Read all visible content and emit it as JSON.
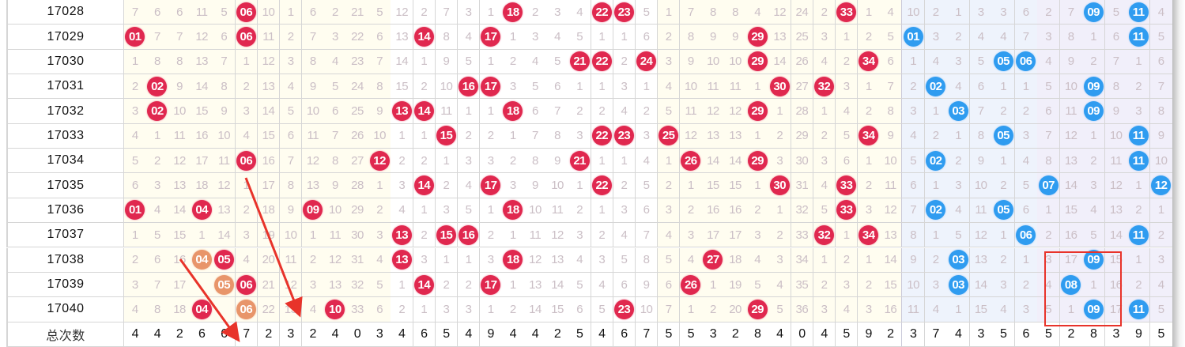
{
  "totals_label": "总次数",
  "colors": {
    "red_ball": "#e0284f",
    "blue_ball": "#2f9cf0",
    "orange_ball": "#e8956a",
    "annotation": "#e8332a"
  },
  "rows": [
    {
      "issue": "17028",
      "red": [
        "7",
        "6",
        "6",
        "11",
        "5",
        {
          "ball": "06",
          "color": "red"
        },
        "10",
        "1",
        "6",
        "2",
        "21",
        "5",
        "12",
        "2",
        "7",
        "3",
        "1",
        {
          "ball": "18",
          "color": "red"
        },
        "2",
        "3",
        "4",
        {
          "ball": "22",
          "color": "red"
        },
        {
          "ball": "23",
          "color": "red"
        },
        "5",
        "1",
        "7",
        "8",
        "8",
        "4",
        "12",
        "24",
        "2",
        {
          "ball": "33",
          "color": "red"
        },
        "1",
        "4"
      ],
      "blue": [
        "10",
        "2",
        "1",
        "3",
        "3",
        "6",
        "2",
        "7",
        {
          "ball": "09",
          "color": "blue"
        },
        "5",
        {
          "ball": "11",
          "color": "blue"
        },
        "4"
      ]
    },
    {
      "issue": "17029",
      "red": [
        {
          "ball": "01",
          "color": "red"
        },
        "7",
        "7",
        "12",
        "6",
        {
          "ball": "06",
          "color": "red"
        },
        "11",
        "2",
        "7",
        "3",
        "22",
        "6",
        "13",
        {
          "ball": "14",
          "color": "red"
        },
        "8",
        "4",
        {
          "ball": "17",
          "color": "red"
        },
        "1",
        "3",
        "4",
        "5",
        "1",
        "1",
        "6",
        "2",
        "8",
        "9",
        "9",
        {
          "ball": "29",
          "color": "red"
        },
        "13",
        "25",
        "3",
        "1",
        "2",
        "5"
      ],
      "blue": [
        {
          "ball": "01",
          "color": "blue"
        },
        "3",
        "2",
        "4",
        "4",
        "7",
        "3",
        "8",
        "1",
        "6",
        {
          "ball": "11",
          "color": "blue"
        },
        "5"
      ]
    },
    {
      "issue": "17030",
      "red": [
        "1",
        "8",
        "8",
        "13",
        "7",
        "1",
        "12",
        "3",
        "8",
        "4",
        "23",
        "7",
        "14",
        "1",
        "9",
        "5",
        "1",
        "2",
        "4",
        "5",
        {
          "ball": "21",
          "color": "red"
        },
        {
          "ball": "22",
          "color": "red"
        },
        "2",
        {
          "ball": "24",
          "color": "red"
        },
        "3",
        "9",
        "10",
        "10",
        {
          "ball": "29",
          "color": "red"
        },
        "14",
        "26",
        "4",
        "2",
        {
          "ball": "34",
          "color": "red"
        },
        "6"
      ],
      "blue": [
        "1",
        "4",
        "3",
        "5",
        {
          "ball": "05",
          "color": "blue"
        },
        {
          "ball": "06",
          "color": "blue"
        },
        "4",
        "9",
        "2",
        "7",
        "1",
        "6"
      ]
    },
    {
      "issue": "17031",
      "red": [
        "2",
        {
          "ball": "02",
          "color": "red"
        },
        "9",
        "14",
        "8",
        "2",
        "13",
        "4",
        "9",
        "5",
        "24",
        "8",
        "15",
        "2",
        "10",
        {
          "ball": "16",
          "color": "red"
        },
        {
          "ball": "17",
          "color": "red"
        },
        "3",
        "5",
        "6",
        "1",
        "1",
        "3",
        "1",
        "4",
        "10",
        "11",
        "11",
        "1",
        {
          "ball": "30",
          "color": "red"
        },
        "27",
        {
          "ball": "32",
          "color": "red"
        },
        "3",
        "1",
        "7"
      ],
      "blue": [
        "2",
        {
          "ball": "02",
          "color": "blue"
        },
        "4",
        "6",
        "1",
        "1",
        "5",
        "10",
        {
          "ball": "09",
          "color": "blue"
        },
        "8",
        "2",
        "7"
      ]
    },
    {
      "issue": "17032",
      "red": [
        "3",
        {
          "ball": "02",
          "color": "red"
        },
        "10",
        "15",
        "9",
        "3",
        "14",
        "5",
        "10",
        "6",
        "25",
        "9",
        {
          "ball": "13",
          "color": "red"
        },
        {
          "ball": "14",
          "color": "red"
        },
        "11",
        "1",
        "1",
        {
          "ball": "18",
          "color": "red"
        },
        "6",
        "7",
        "2",
        "2",
        "4",
        "2",
        "5",
        "11",
        "12",
        "12",
        {
          "ball": "29",
          "color": "red"
        },
        "1",
        "28",
        "1",
        "4",
        "2",
        "8"
      ],
      "blue": [
        "3",
        "1",
        {
          "ball": "03",
          "color": "blue"
        },
        "7",
        "2",
        "2",
        "6",
        "11",
        {
          "ball": "09",
          "color": "blue"
        },
        "9",
        "3",
        "8"
      ]
    },
    {
      "issue": "17033",
      "red": [
        "4",
        "1",
        "11",
        "16",
        "10",
        "4",
        "15",
        "6",
        "11",
        "7",
        "26",
        "10",
        "1",
        "1",
        {
          "ball": "15",
          "color": "red"
        },
        "2",
        "2",
        "1",
        "7",
        "8",
        "3",
        {
          "ball": "22",
          "color": "red"
        },
        {
          "ball": "23",
          "color": "red"
        },
        "3",
        {
          "ball": "25",
          "color": "red"
        },
        "12",
        "13",
        "13",
        "1",
        "2",
        "29",
        "2",
        "5",
        {
          "ball": "34",
          "color": "red"
        },
        "9"
      ],
      "blue": [
        "4",
        "2",
        "1",
        "8",
        {
          "ball": "05",
          "color": "blue"
        },
        "3",
        "7",
        "12",
        "1",
        "10",
        {
          "ball": "11",
          "color": "blue"
        },
        "9"
      ]
    },
    {
      "issue": "17034",
      "red": [
        "5",
        "2",
        "12",
        "17",
        "11",
        {
          "ball": "06",
          "color": "red"
        },
        "16",
        "7",
        "12",
        "8",
        "27",
        {
          "ball": "12",
          "color": "red"
        },
        "2",
        "2",
        "1",
        "3",
        "3",
        "2",
        "8",
        "9",
        {
          "ball": "21",
          "color": "red"
        },
        "1",
        "1",
        "4",
        "1",
        {
          "ball": "26",
          "color": "red"
        },
        "14",
        "14",
        {
          "ball": "29",
          "color": "red"
        },
        "3",
        "30",
        "3",
        "6",
        "1",
        "10"
      ],
      "blue": [
        "5",
        {
          "ball": "02",
          "color": "blue"
        },
        "2",
        "9",
        "1",
        "4",
        "8",
        "13",
        "2",
        "11",
        {
          "ball": "11",
          "color": "blue"
        },
        "10"
      ]
    },
    {
      "issue": "17035",
      "red": [
        "6",
        "3",
        "13",
        "18",
        "12",
        "1",
        "17",
        "8",
        "13",
        "9",
        "28",
        "1",
        "3",
        {
          "ball": "14",
          "color": "red"
        },
        "2",
        "4",
        {
          "ball": "17",
          "color": "red"
        },
        "3",
        "9",
        "10",
        "1",
        {
          "ball": "22",
          "color": "red"
        },
        "2",
        "5",
        "2",
        "1",
        "15",
        "15",
        "1",
        {
          "ball": "30",
          "color": "red"
        },
        "31",
        "4",
        {
          "ball": "33",
          "color": "red"
        },
        "2",
        "11"
      ],
      "blue": [
        "6",
        "1",
        "3",
        "10",
        "2",
        "5",
        {
          "ball": "07",
          "color": "blue"
        },
        "14",
        "3",
        "12",
        "1",
        {
          "ball": "12",
          "color": "blue"
        }
      ]
    },
    {
      "issue": "17036",
      "red": [
        {
          "ball": "01",
          "color": "red"
        },
        "4",
        "14",
        {
          "ball": "04",
          "color": "red"
        },
        "13",
        "2",
        "18",
        "9",
        {
          "ball": "09",
          "color": "red"
        },
        "10",
        "29",
        "2",
        "4",
        "1",
        "3",
        "5",
        "1",
        {
          "ball": "18",
          "color": "red"
        },
        "10",
        "11",
        "2",
        "1",
        "3",
        "6",
        "3",
        "2",
        "16",
        "16",
        "2",
        "1",
        "32",
        "5",
        {
          "ball": "33",
          "color": "red"
        },
        "3",
        "12"
      ],
      "blue": [
        "7",
        {
          "ball": "02",
          "color": "blue"
        },
        "4",
        "11",
        {
          "ball": "05",
          "color": "blue"
        },
        "6",
        "1",
        "15",
        "4",
        "13",
        "2",
        "1"
      ]
    },
    {
      "issue": "17037",
      "red": [
        "1",
        "5",
        "15",
        "1",
        "14",
        "3",
        "19",
        "10",
        "1",
        "11",
        "30",
        "3",
        {
          "ball": "13",
          "color": "red"
        },
        "2",
        {
          "ball": "15",
          "color": "red"
        },
        {
          "ball": "16",
          "color": "red"
        },
        "2",
        "1",
        "11",
        "12",
        "3",
        "2",
        "4",
        "7",
        "4",
        "3",
        "17",
        "17",
        "3",
        "2",
        "33",
        {
          "ball": "32",
          "color": "red"
        },
        "1",
        {
          "ball": "34",
          "color": "red"
        },
        "13"
      ],
      "blue": [
        "8",
        "1",
        "5",
        "12",
        "1",
        {
          "ball": "06",
          "color": "blue"
        },
        "2",
        "16",
        "5",
        "14",
        {
          "ball": "11",
          "color": "blue"
        },
        "2"
      ]
    },
    {
      "issue": "17038",
      "red": [
        "2",
        "6",
        "16",
        {
          "ball": "04",
          "color": "orange"
        },
        {
          "ball": "05",
          "color": "red"
        },
        "4",
        "20",
        "11",
        "2",
        "12",
        "31",
        "4",
        {
          "ball": "13",
          "color": "red"
        },
        "3",
        "1",
        "1",
        "3",
        {
          "ball": "18",
          "color": "red"
        },
        "12",
        "13",
        "4",
        "3",
        "5",
        "8",
        "5",
        "4",
        {
          "ball": "27",
          "color": "red"
        },
        "18",
        "4",
        "3",
        "34",
        "1",
        "2",
        "1",
        "14"
      ],
      "blue": [
        "9",
        "2",
        {
          "ball": "03",
          "color": "blue"
        },
        "13",
        "2",
        "1",
        "3",
        "17",
        {
          "ball": "09",
          "color": "blue"
        },
        "15",
        "1",
        "3"
      ]
    },
    {
      "issue": "17039",
      "red": [
        "3",
        "7",
        "17",
        "",
        {
          "ball": "05",
          "color": "orange"
        },
        {
          "ball": "06",
          "color": "red"
        },
        "21",
        "12",
        "3",
        "13",
        "32",
        "5",
        "1",
        {
          "ball": "14",
          "color": "red"
        },
        "2",
        "2",
        {
          "ball": "17",
          "color": "red"
        },
        "1",
        "13",
        "14",
        "5",
        "4",
        "6",
        "9",
        "6",
        {
          "ball": "26",
          "color": "red"
        },
        "1",
        "19",
        "5",
        "4",
        "35",
        "2",
        "3",
        "2",
        "15"
      ],
      "blue": [
        "10",
        "3",
        {
          "ball": "03",
          "color": "blue"
        },
        "14",
        "3",
        "2",
        "4",
        {
          "ball": "08",
          "color": "blue"
        },
        "1",
        "16",
        "2",
        "4"
      ]
    },
    {
      "issue": "17040",
      "red": [
        "4",
        "8",
        "18",
        {
          "ball": "04",
          "color": "red"
        },
        "",
        {
          "ball": "06",
          "color": "orange"
        },
        "22",
        "13",
        "4",
        {
          "ball": "10",
          "color": "red"
        },
        "33",
        "6",
        "2",
        "1",
        "3",
        "3",
        "1",
        "2",
        "14",
        "15",
        "6",
        "5",
        {
          "ball": "23",
          "color": "red"
        },
        "10",
        "7",
        "1",
        "2",
        "20",
        {
          "ball": "29",
          "color": "red"
        },
        "5",
        "36",
        "3",
        "4",
        "3",
        "16"
      ],
      "blue": [
        "11",
        "4",
        "1",
        "15",
        "4",
        "3",
        "5",
        "1",
        {
          "ball": "09",
          "color": "blue"
        },
        "17",
        {
          "ball": "11",
          "color": "blue"
        },
        "5"
      ]
    }
  ],
  "totals": {
    "red": [
      "4",
      "4",
      "2",
      "6",
      "6",
      "7",
      "2",
      "3",
      "2",
      "4",
      "0",
      "3",
      "4",
      "6",
      "5",
      "4",
      "9",
      "4",
      "4",
      "2",
      "5",
      "4",
      "6",
      "7",
      "5",
      "5",
      "3",
      "2",
      "8",
      "4",
      "0",
      "4",
      "5",
      "9",
      "2"
    ],
    "blue": [
      "3",
      "7",
      "4",
      "3",
      "5",
      "6",
      "5",
      "2",
      "8",
      "3",
      "9",
      "5"
    ]
  }
}
